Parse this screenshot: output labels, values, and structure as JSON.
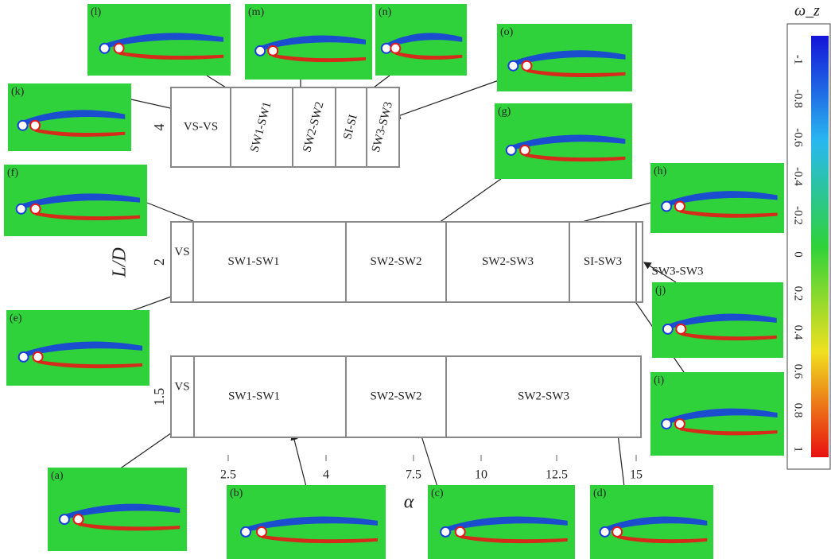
{
  "y_axis": {
    "label": "L/D"
  },
  "x_axis": {
    "label": "α",
    "ticks": [
      "2.5",
      "4",
      "7.5",
      "10",
      "12.5",
      "15"
    ]
  },
  "rows": [
    {
      "label": "4",
      "regimes": [
        "VS-VS",
        "SW1-SW1",
        "SW2-SW2",
        "SI-SI",
        "SW3-SW3"
      ]
    },
    {
      "label": "2",
      "regimes": [
        "VS",
        "SW1-SW1",
        "SW2-SW2",
        "SW2-SW3",
        "SI-SW3",
        "SW3-SW3"
      ]
    },
    {
      "label": "1.5",
      "regimes": [
        "VS",
        "SW1-SW1",
        "SW2-SW2",
        "SW2-SW3"
      ]
    }
  ],
  "colorbar": {
    "title": "ω_z",
    "ticks": [
      "-1",
      "-0.8",
      "-0.6",
      "-0.4",
      "-0.2",
      "0",
      "0.2",
      "0.4",
      "0.6",
      "0.8",
      "1"
    ]
  },
  "panels": [
    "(a)",
    "(b)",
    "(c)",
    "(d)",
    "(e)",
    "(f)",
    "(g)",
    "(h)",
    "(i)",
    "(j)",
    "(k)",
    "(l)",
    "(m)",
    "(n)",
    "(o)"
  ]
}
